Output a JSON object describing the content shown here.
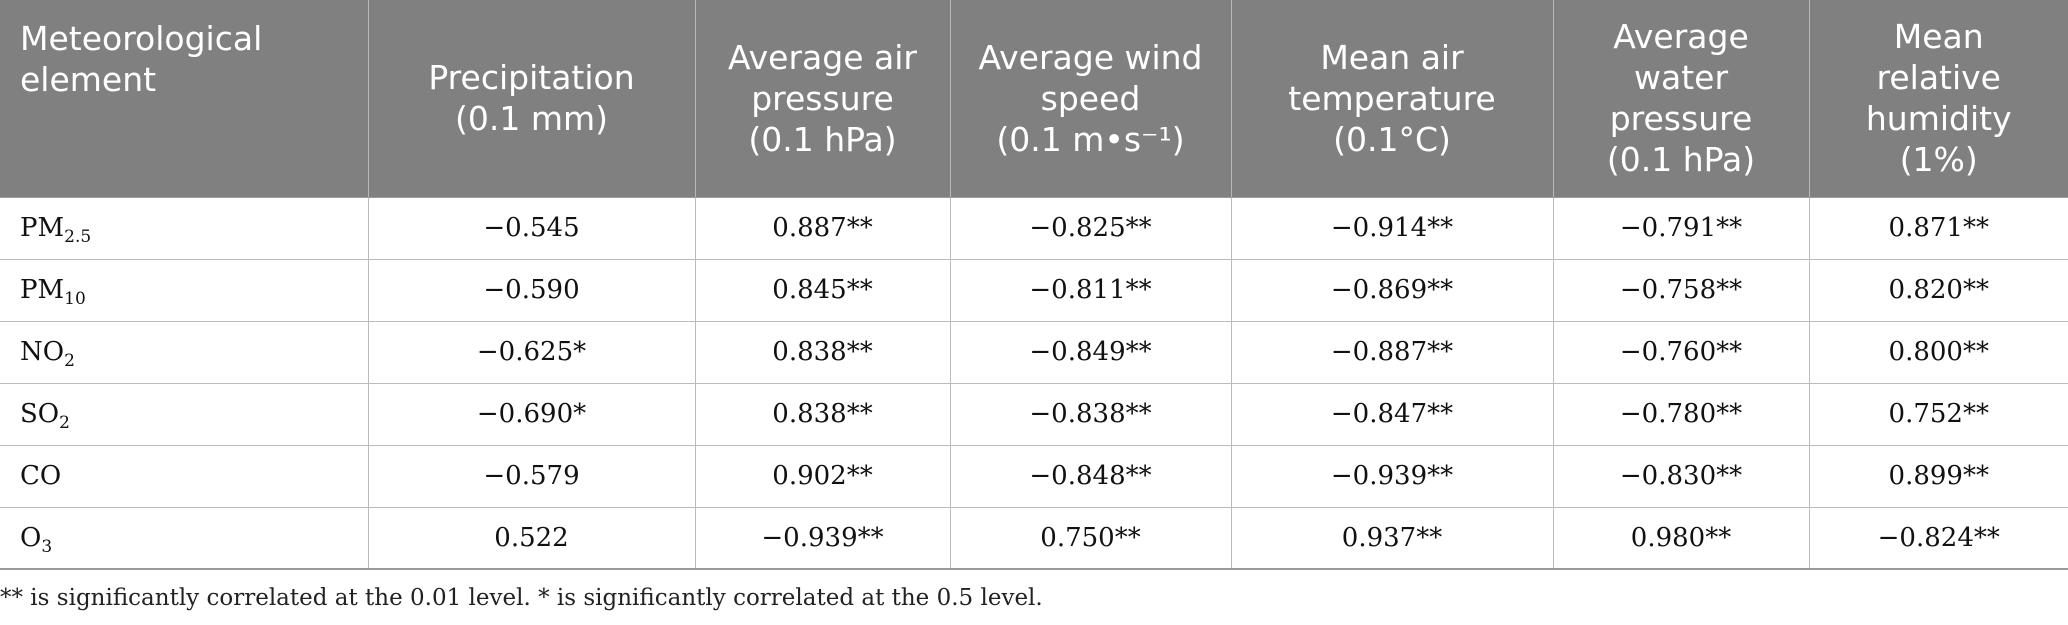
{
  "table": {
    "headers": [
      [
        "Meteorological",
        "element"
      ],
      [
        "Precipitation",
        "(0.1 mm)"
      ],
      [
        "Average air",
        "pressure",
        "(0.1 hPa)"
      ],
      [
        "Average wind",
        "speed",
        "(0.1 m•s⁻¹)"
      ],
      [
        "Mean air",
        "temperature",
        "(0.1°C)"
      ],
      [
        "Average",
        "water",
        "pressure",
        "(0.1 hPa)"
      ],
      [
        "Mean",
        "relative",
        "humidity",
        "(1%)"
      ]
    ],
    "rows": [
      {
        "element_base": "PM",
        "element_sub": "2.5",
        "values": [
          "−0.545",
          "0.887**",
          "−0.825**",
          "−0.914**",
          "−0.791**",
          "0.871**"
        ]
      },
      {
        "element_base": "PM",
        "element_sub": "10",
        "values": [
          "−0.590",
          "0.845**",
          "−0.811**",
          "−0.869**",
          "−0.758**",
          "0.820**"
        ]
      },
      {
        "element_base": "NO",
        "element_sub": "2",
        "values": [
          "−0.625*",
          "0.838**",
          "−0.849**",
          "−0.887**",
          "−0.760**",
          "0.800**"
        ]
      },
      {
        "element_base": "SO",
        "element_sub": "2",
        "values": [
          "−0.690*",
          "0.838**",
          "−0.838**",
          "−0.847**",
          "−0.780**",
          "0.752**"
        ]
      },
      {
        "element_base": "CO",
        "element_sub": "",
        "values": [
          "−0.579",
          "0.902**",
          "−0.848**",
          "−0.939**",
          "−0.830**",
          "0.899**"
        ]
      },
      {
        "element_base": "O",
        "element_sub": "3",
        "values": [
          "0.522",
          "−0.939**",
          "0.750**",
          "0.937**",
          "0.980**",
          "−0.824**"
        ]
      }
    ]
  },
  "footnote": "** is significantly correlated at the 0.01 level. * is significantly correlated at the 0.5 level.",
  "colors": {
    "header_background": "#7f807f",
    "header_text": "#ffffff",
    "body_text": "#111111",
    "grid_line": "#bcbcbc"
  }
}
